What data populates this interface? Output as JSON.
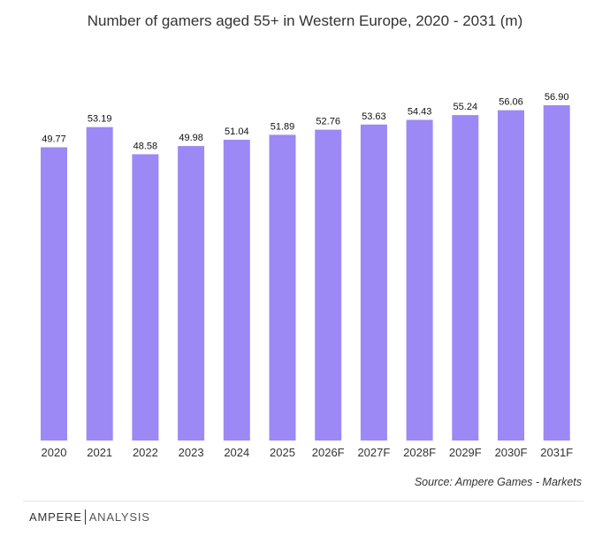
{
  "header": {
    "title": "Number of gamers aged 55+ in Western Europe, 2020 - 2031 (m)"
  },
  "footer": {
    "source": "Source:  Ampere Games - Markets",
    "brand_primary": "AMPERE",
    "brand_secondary": "ANALYSIS"
  },
  "colors": {
    "bar": "#9c89f5",
    "text": "#333333"
  },
  "chart_data": {
    "type": "bar",
    "title": "Number of gamers aged 55+ in Western Europe, 2020 - 2031 (m)",
    "categories": [
      "2020",
      "2021",
      "2022",
      "2023",
      "2024",
      "2025",
      "2026F",
      "2027F",
      "2028F",
      "2029F",
      "2030F",
      "2031F"
    ],
    "values": [
      49.77,
      53.19,
      48.58,
      49.98,
      51.04,
      51.89,
      52.76,
      53.63,
      54.43,
      55.24,
      56.06,
      56.9
    ],
    "value_labels": [
      "49.77",
      "53.19",
      "48.58",
      "49.98",
      "51.04",
      "51.89",
      "52.76",
      "53.63",
      "54.43",
      "55.24",
      "56.06",
      "56.90"
    ],
    "xlabel": "",
    "ylabel": "",
    "ylim": [
      0,
      57
    ],
    "grid": false,
    "legend": "none"
  }
}
